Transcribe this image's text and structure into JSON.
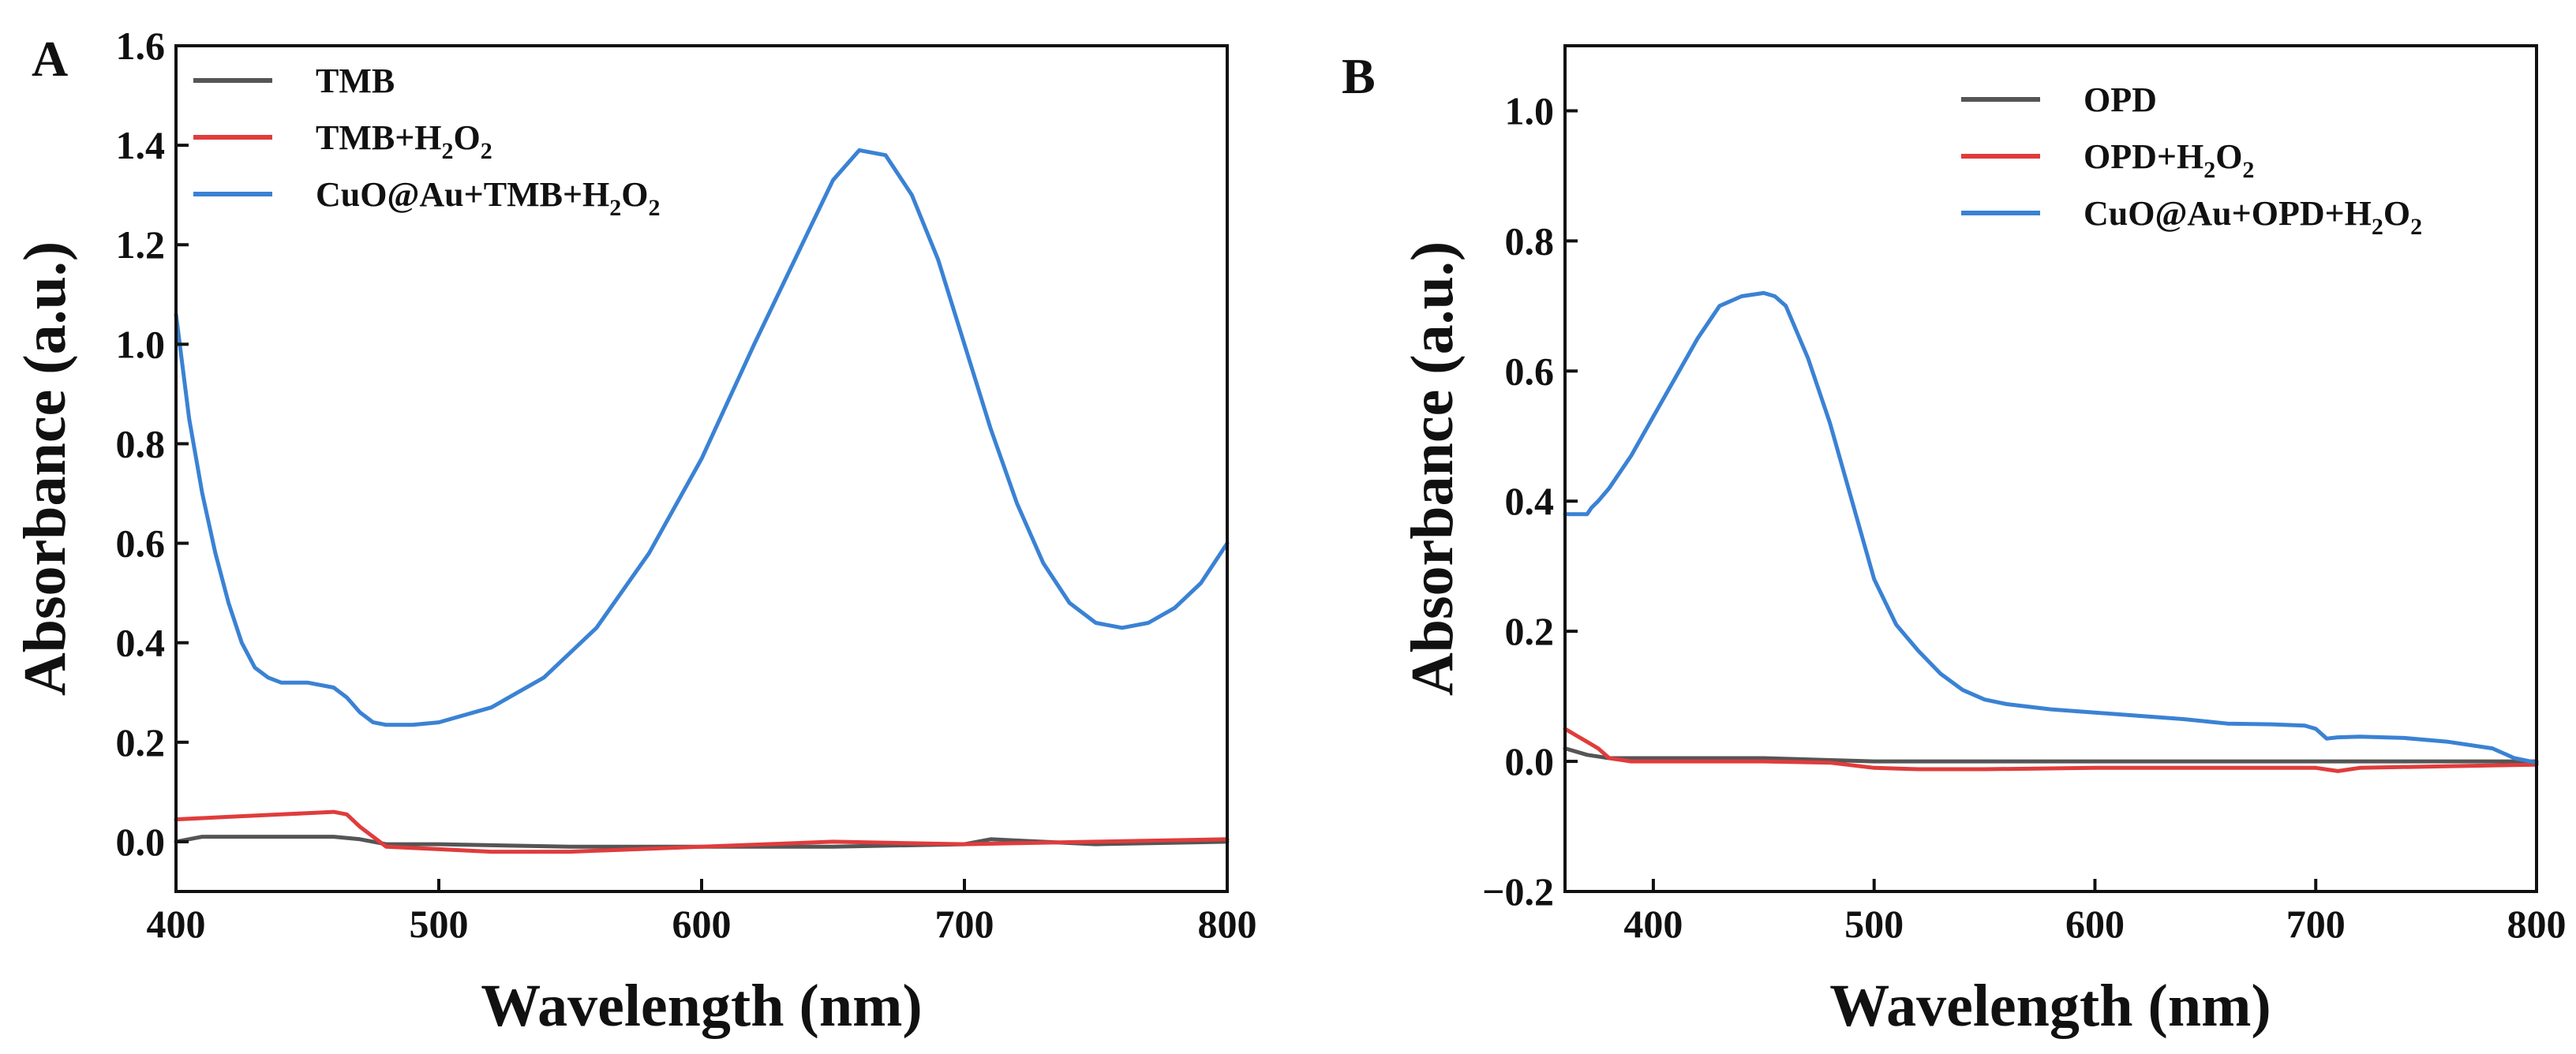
{
  "chart_data": [
    {
      "type": "line",
      "panel_label": "A",
      "xlabel": "Wavelength (nm)",
      "ylabel": "Absorbance (a.u.)",
      "xlim": [
        400,
        800
      ],
      "ylim": [
        -0.1,
        1.6
      ],
      "xticks": [
        400,
        500,
        600,
        700,
        800
      ],
      "yticks": [
        0.0,
        0.2,
        0.4,
        0.6,
        0.8,
        1.0,
        1.2,
        1.4,
        1.6
      ],
      "legend_position": "top-left",
      "series": [
        {
          "name": "TMB",
          "legend": {
            "base": "TMB",
            "sub1": "",
            "mid": "",
            "sub2": ""
          },
          "color": "#555555",
          "x": [
            400,
            410,
            430,
            460,
            470,
            480,
            500,
            550,
            600,
            650,
            700,
            710,
            750,
            800
          ],
          "y": [
            0.0,
            0.01,
            0.01,
            0.01,
            0.005,
            -0.005,
            -0.005,
            -0.01,
            -0.01,
            -0.01,
            -0.005,
            0.005,
            -0.005,
            0.0
          ]
        },
        {
          "name": "TMB+H2O2",
          "legend": {
            "base": "TMB+H",
            "sub1": "2",
            "mid": "O",
            "sub2": "2"
          },
          "color": "#e03c3c",
          "x": [
            400,
            420,
            440,
            460,
            465,
            470,
            475,
            480,
            500,
            520,
            550,
            600,
            650,
            700,
            750,
            800
          ],
          "y": [
            0.045,
            0.05,
            0.055,
            0.06,
            0.055,
            0.03,
            0.01,
            -0.01,
            -0.015,
            -0.02,
            -0.02,
            -0.01,
            0.0,
            -0.005,
            0.0,
            0.005
          ]
        },
        {
          "name": "CuO@Au+TMB+H2O2",
          "legend": {
            "base": "CuO@Au+TMB+H",
            "sub1": "2",
            "mid": "O",
            "sub2": "2"
          },
          "color": "#3a82d4",
          "x": [
            400,
            405,
            410,
            415,
            420,
            425,
            430,
            435,
            440,
            450,
            460,
            465,
            470,
            475,
            480,
            490,
            500,
            520,
            540,
            560,
            580,
            600,
            620,
            640,
            650,
            660,
            670,
            680,
            690,
            700,
            710,
            720,
            730,
            740,
            750,
            760,
            770,
            780,
            790,
            800
          ],
          "y": [
            1.06,
            0.85,
            0.7,
            0.58,
            0.48,
            0.4,
            0.35,
            0.33,
            0.32,
            0.32,
            0.31,
            0.29,
            0.26,
            0.24,
            0.235,
            0.235,
            0.24,
            0.27,
            0.33,
            0.43,
            0.58,
            0.77,
            1.0,
            1.22,
            1.33,
            1.39,
            1.38,
            1.3,
            1.17,
            1.0,
            0.83,
            0.68,
            0.56,
            0.48,
            0.44,
            0.43,
            0.44,
            0.47,
            0.52,
            0.6
          ]
        }
      ]
    },
    {
      "type": "line",
      "panel_label": "B",
      "xlabel": "Wavelength (nm)",
      "ylabel": "Absorbance (a.u.)",
      "xlim": [
        360,
        800
      ],
      "ylim": [
        -0.2,
        1.1
      ],
      "xticks": [
        400,
        500,
        600,
        700,
        800
      ],
      "yticks": [
        -0.2,
        0.0,
        0.2,
        0.4,
        0.6,
        0.8,
        1.0
      ],
      "legend_position": "top-right",
      "series": [
        {
          "name": "OPD",
          "legend": {
            "base": "OPD",
            "sub1": "",
            "mid": "",
            "sub2": ""
          },
          "color": "#555555",
          "x": [
            360,
            370,
            380,
            400,
            450,
            500,
            550,
            600,
            650,
            700,
            750,
            800
          ],
          "y": [
            0.02,
            0.01,
            0.005,
            0.005,
            0.005,
            0.0,
            0.0,
            0.0,
            0.0,
            0.0,
            0.0,
            0.0
          ]
        },
        {
          "name": "OPD+H2O2",
          "legend": {
            "base": "OPD+H",
            "sub1": "2",
            "mid": "O",
            "sub2": "2"
          },
          "color": "#e03c3c",
          "x": [
            360,
            365,
            370,
            375,
            380,
            390,
            400,
            450,
            480,
            500,
            520,
            550,
            600,
            650,
            700,
            710,
            720,
            750,
            800
          ],
          "y": [
            0.05,
            0.04,
            0.03,
            0.02,
            0.005,
            0.0,
            0.0,
            0.0,
            -0.002,
            -0.01,
            -0.012,
            -0.012,
            -0.01,
            -0.01,
            -0.01,
            -0.015,
            -0.01,
            -0.008,
            -0.005
          ]
        },
        {
          "name": "CuO@Au+OPD+H2O2",
          "legend": {
            "base": "CuO@Au+OPD+H",
            "sub1": "2",
            "mid": "O",
            "sub2": "2"
          },
          "color": "#3a82d4",
          "x": [
            360,
            365,
            370,
            372,
            375,
            380,
            390,
            400,
            410,
            420,
            430,
            440,
            450,
            455,
            460,
            470,
            480,
            490,
            500,
            510,
            520,
            530,
            540,
            550,
            560,
            580,
            600,
            620,
            640,
            660,
            680,
            695,
            700,
            705,
            710,
            720,
            740,
            760,
            780,
            790,
            800
          ],
          "y": [
            0.38,
            0.38,
            0.38,
            0.39,
            0.4,
            0.42,
            0.47,
            0.53,
            0.59,
            0.65,
            0.7,
            0.715,
            0.72,
            0.715,
            0.7,
            0.62,
            0.52,
            0.4,
            0.28,
            0.21,
            0.17,
            0.135,
            0.11,
            0.095,
            0.088,
            0.08,
            0.075,
            0.07,
            0.065,
            0.058,
            0.057,
            0.055,
            0.05,
            0.035,
            0.037,
            0.038,
            0.036,
            0.03,
            0.02,
            0.005,
            -0.002
          ]
        }
      ]
    }
  ]
}
